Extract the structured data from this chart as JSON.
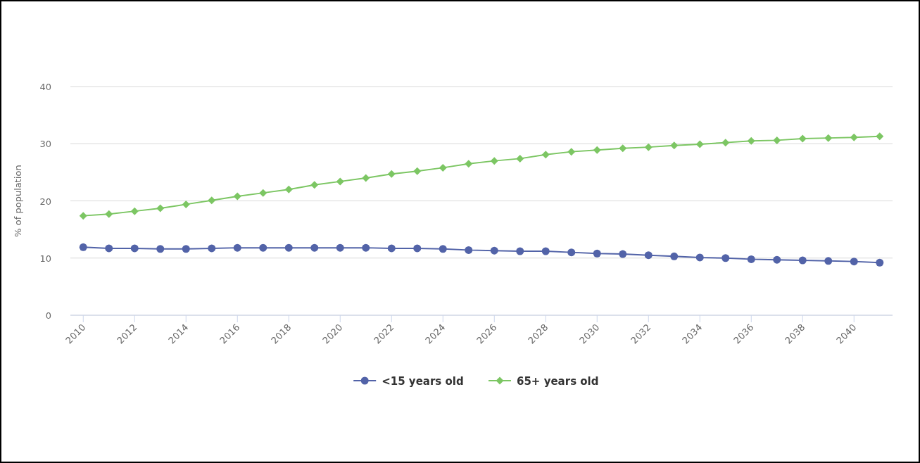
{
  "chart_data": {
    "type": "line",
    "ylabel": "% of population",
    "x": [
      2010,
      2011,
      2012,
      2013,
      2014,
      2015,
      2016,
      2017,
      2018,
      2019,
      2020,
      2021,
      2022,
      2023,
      2024,
      2025,
      2026,
      2027,
      2028,
      2029,
      2030,
      2031,
      2032,
      2033,
      2034,
      2035,
      2036,
      2037,
      2038,
      2039,
      2040,
      2041
    ],
    "xlim": [
      2009.5,
      2041.5
    ],
    "xticks": [
      2010,
      2012,
      2014,
      2016,
      2018,
      2020,
      2022,
      2024,
      2026,
      2028,
      2030,
      2032,
      2034,
      2036,
      2038,
      2040
    ],
    "ylim": [
      0,
      40
    ],
    "yticks": [
      0,
      10,
      20,
      30,
      40
    ],
    "grid": "y",
    "legend": "bottom",
    "series": [
      {
        "name": "<15 years old",
        "color": "#5263a8",
        "marker": "circle",
        "values": [
          11.9,
          11.7,
          11.7,
          11.6,
          11.6,
          11.7,
          11.8,
          11.8,
          11.8,
          11.8,
          11.8,
          11.8,
          11.7,
          11.7,
          11.6,
          11.4,
          11.3,
          11.2,
          11.2,
          11.0,
          10.8,
          10.7,
          10.5,
          10.3,
          10.1,
          10.0,
          9.8,
          9.7,
          9.6,
          9.5,
          9.4,
          9.2
        ]
      },
      {
        "name": "65+ years old",
        "color": "#7cc663",
        "marker": "diamond",
        "values": [
          17.4,
          17.7,
          18.2,
          18.7,
          19.4,
          20.1,
          20.8,
          21.4,
          22.0,
          22.8,
          23.4,
          24.0,
          24.7,
          25.2,
          25.8,
          26.5,
          27.0,
          27.4,
          28.1,
          28.6,
          28.9,
          29.2,
          29.4,
          29.7,
          29.9,
          30.2,
          30.5,
          30.6,
          30.9,
          31.0,
          31.1,
          31.3
        ]
      }
    ]
  }
}
